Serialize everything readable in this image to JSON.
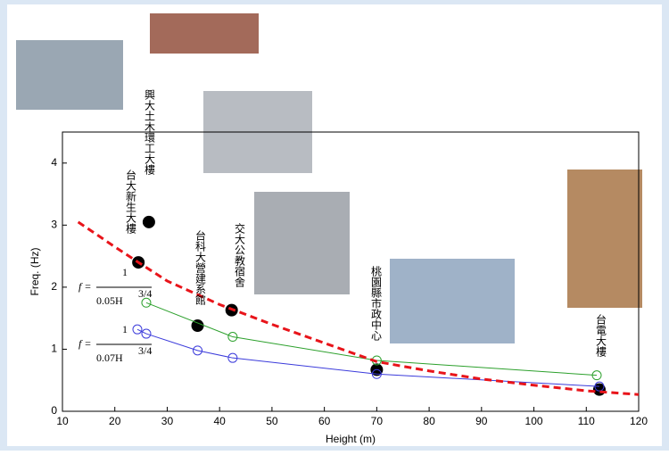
{
  "chart_data": {
    "type": "line",
    "x_label": "Height (m)",
    "y_label": "Freq. (Hz)",
    "xlim": [
      10,
      120
    ],
    "ylim": [
      0,
      4.5
    ],
    "xticks": [
      10,
      20,
      30,
      40,
      50,
      60,
      70,
      80,
      90,
      100,
      110,
      120
    ],
    "yticks": [
      0,
      1,
      2,
      3,
      4
    ],
    "series": [
      {
        "color": "#000000",
        "style": "points",
        "x": [
          24.5,
          26.5,
          35.8,
          42.3,
          70,
          112.5
        ],
        "values": [
          2.4,
          3.05,
          1.38,
          1.63,
          0.67,
          0.35
        ]
      },
      {
        "color": "#2ca02c",
        "style": "line-circles",
        "x": [
          26,
          42.5,
          70,
          112
        ],
        "values": [
          1.75,
          1.2,
          0.82,
          0.58
        ]
      },
      {
        "color": "#3b3bdb",
        "style": "line-circles",
        "x": [
          24.3,
          26,
          35.8,
          42.5,
          70,
          112.5
        ],
        "values": [
          1.32,
          1.25,
          0.98,
          0.86,
          0.6,
          0.4
        ]
      },
      {
        "color": "#e8141a",
        "style": "dashed",
        "x": [
          13,
          20,
          24.5,
          30,
          40,
          50,
          60,
          70,
          80,
          90,
          100,
          110,
          120
        ],
        "values": [
          3.05,
          2.65,
          2.4,
          2.1,
          1.72,
          1.4,
          1.1,
          0.8,
          0.65,
          0.52,
          0.42,
          0.33,
          0.27
        ]
      }
    ],
    "building_labels": [
      "興大土木環工大樓",
      "台大新生大樓",
      "台科大營建系館",
      "交大公教宿舍",
      "桃園縣市政中心",
      "台電大樓"
    ],
    "formulas": [
      {
        "lhs": "f =",
        "numerator": "1",
        "denominator": "0.05H",
        "exponent": "3/4"
      },
      {
        "lhs": "f =",
        "numerator": "1",
        "denominator": "0.07H",
        "exponent": "3/4"
      }
    ]
  }
}
